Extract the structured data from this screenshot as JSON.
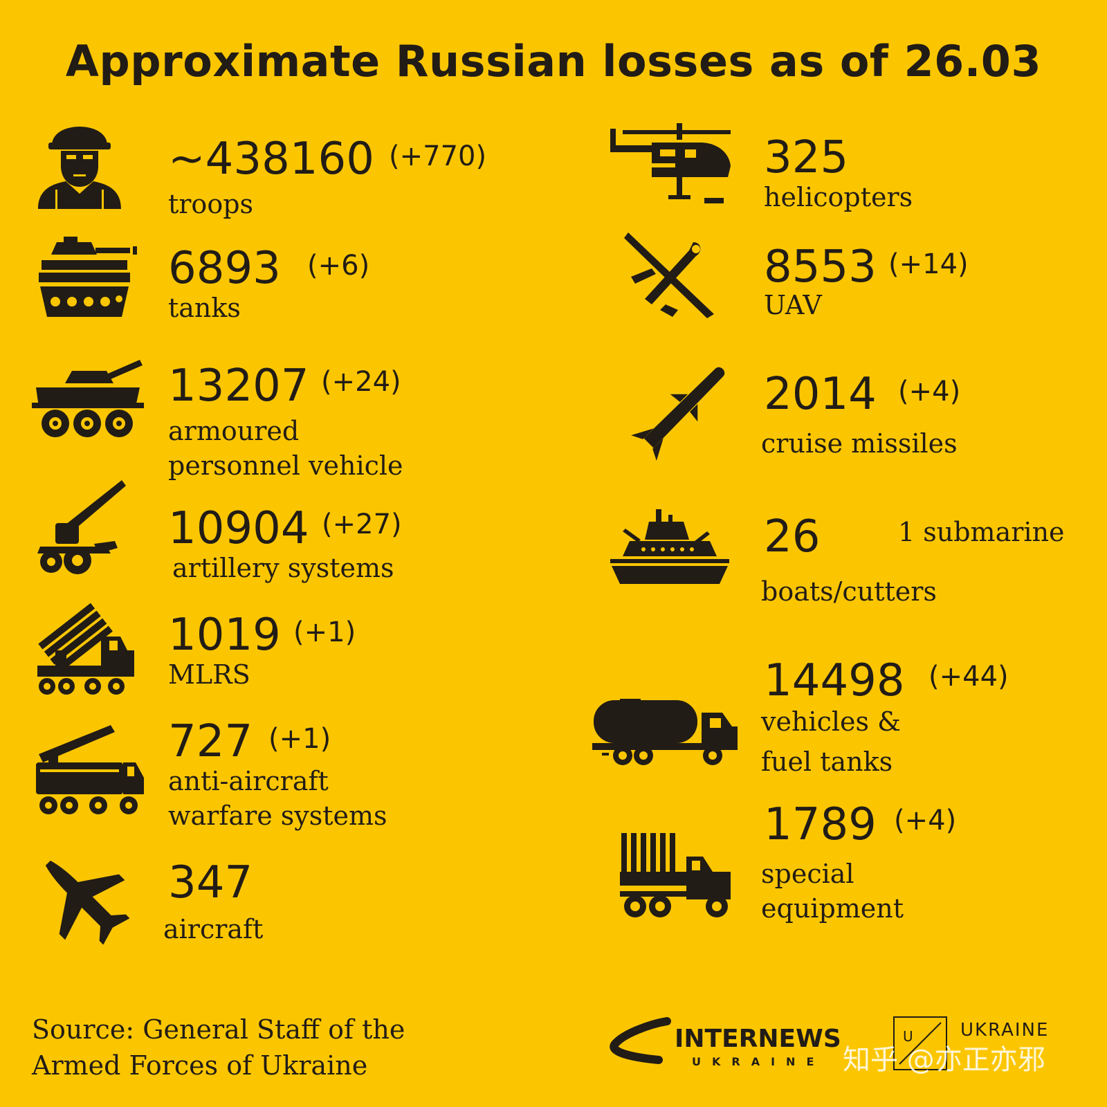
{
  "title": "Approximate Russian losses as of 26.03",
  "items": {
    "troops": {
      "number": "~438160",
      "delta": "(+770)",
      "label_lines": [
        "troops"
      ],
      "icon": "soldier-icon"
    },
    "tanks": {
      "number": "6893",
      "delta": "(+6)",
      "label_lines": [
        "tanks"
      ],
      "icon": "tank-icon"
    },
    "apv": {
      "number": "13207",
      "delta": "(+24)",
      "label_lines": [
        "armoured",
        "personnel vehicle"
      ],
      "icon": "armoured-vehicle-icon"
    },
    "artillery": {
      "number": "10904",
      "delta": "(+27)",
      "label_lines": [
        "artillery systems"
      ],
      "icon": "artillery-icon"
    },
    "mlrs": {
      "number": "1019",
      "delta": "(+1)",
      "label_lines": [
        "MLRS"
      ],
      "icon": "mlrs-icon"
    },
    "aa": {
      "number": "727",
      "delta": "(+1)",
      "label_lines": [
        "anti-aircraft",
        "warfare systems"
      ],
      "icon": "anti-aircraft-icon"
    },
    "aircraft": {
      "number": "347",
      "label_lines": [
        "aircraft"
      ],
      "icon": "jet-icon"
    },
    "helicopters": {
      "number": "325",
      "label_lines": [
        "helicopters"
      ],
      "icon": "helicopter-icon"
    },
    "uav": {
      "number": "8553",
      "delta": "(+14)",
      "label_lines": [
        "UAV"
      ],
      "icon": "drone-icon"
    },
    "missiles": {
      "number": "2014",
      "delta": "(+4)",
      "label_lines": [
        "cruise missiles"
      ],
      "icon": "missile-icon"
    },
    "boats": {
      "number": "26",
      "note": "1 submarine",
      "label_lines": [
        "boats/cutters"
      ],
      "icon": "ship-icon"
    },
    "vehicles": {
      "number": "14498",
      "delta": "(+44)",
      "label_lines": [
        "vehicles &",
        "fuel tanks"
      ],
      "icon": "fuel-truck-icon"
    },
    "special": {
      "number": "1789",
      "delta": "(+4)",
      "label_lines": [
        "special",
        "equipment"
      ],
      "icon": "special-truck-icon"
    }
  },
  "source_lines": [
    "Source: General Staff of the",
    "Armed Forces of Ukraine"
  ],
  "brand": {
    "name": "INTERNEWS",
    "sub": "UKRAINE",
    "partner": "UKRAINE",
    "partner_mark": "U"
  },
  "watermark": "知乎 @亦正亦邪",
  "colors": {
    "background": "#fbc600",
    "ink": "#221c16"
  }
}
